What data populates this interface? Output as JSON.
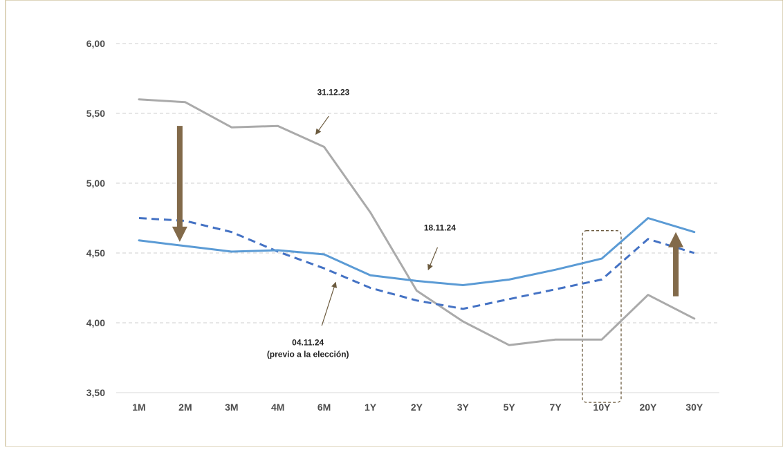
{
  "chart_data": {
    "type": "line",
    "categories": [
      "1M",
      "2M",
      "3M",
      "4M",
      "6M",
      "1Y",
      "2Y",
      "3Y",
      "5Y",
      "7Y",
      "10Y",
      "20Y",
      "30Y"
    ],
    "ylim": [
      3.5,
      6.0
    ],
    "yticks": [
      3.5,
      4.0,
      4.5,
      5.0,
      5.5,
      6.0
    ],
    "ytick_labels": [
      "3,50",
      "4,00",
      "4,50",
      "5,00",
      "5,50",
      "6,00"
    ],
    "grid": "horizontal-dashed",
    "series": [
      {
        "name": "31.12.23",
        "color": "#aaaaaa",
        "style": "solid",
        "values": [
          5.6,
          5.58,
          5.4,
          5.41,
          5.26,
          4.79,
          4.23,
          4.01,
          3.84,
          3.88,
          3.88,
          4.2,
          4.03
        ]
      },
      {
        "name": "04.11.24",
        "color": "#4472c4",
        "style": "dashed",
        "values": [
          4.75,
          4.73,
          4.65,
          4.51,
          4.39,
          4.25,
          4.16,
          4.1,
          4.17,
          4.24,
          4.31,
          4.6,
          4.5
        ]
      },
      {
        "name": "18.11.24",
        "color": "#5b9bd5",
        "style": "solid",
        "values": [
          4.59,
          4.55,
          4.51,
          4.52,
          4.49,
          4.34,
          4.3,
          4.27,
          4.31,
          4.38,
          4.46,
          4.75,
          4.65
        ]
      }
    ],
    "annotations": {
      "a1": {
        "text": "31.12.23",
        "cat": 4.2,
        "y": 5.63,
        "arrow_from": [
          4.1,
          5.48
        ],
        "arrow_to": [
          3.82,
          5.35
        ]
      },
      "a2": {
        "text": "18.11.24",
        "cat": 6.5,
        "y": 4.66,
        "arrow_from": [
          6.45,
          4.54
        ],
        "arrow_to": [
          6.25,
          4.38
        ]
      },
      "a3": {
        "text": "04.11.24",
        "text2": "(previo a la elección)",
        "cat": 3.65,
        "y": 3.84,
        "arrow_from": [
          3.95,
          3.98
        ],
        "arrow_to": [
          4.25,
          4.29
        ]
      }
    },
    "arrows": [
      {
        "direction": "down",
        "cat": 0.88,
        "from": 5.41,
        "to": 4.58,
        "color": "#826a4a"
      },
      {
        "direction": "up",
        "cat": 11.6,
        "from": 4.19,
        "to": 4.65,
        "color": "#826a4a"
      }
    ],
    "highlight": {
      "category": "10Y",
      "from": 3.43,
      "to": 4.66
    }
  }
}
